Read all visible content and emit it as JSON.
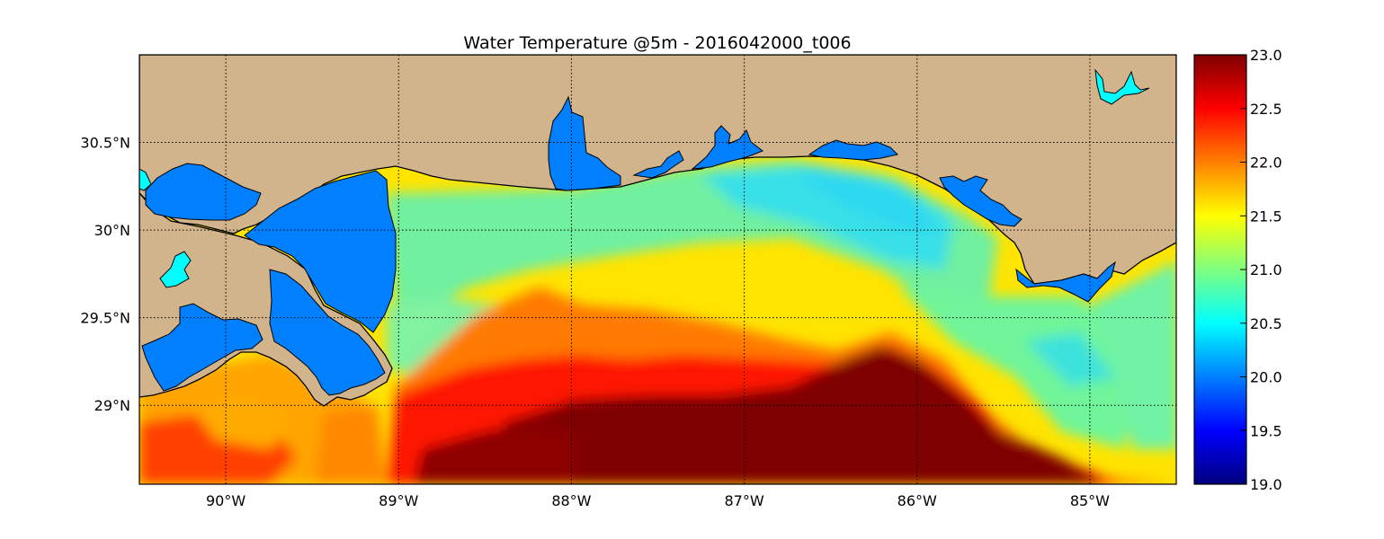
{
  "title": "Water Temperature @5m - 2016042000_t006",
  "map": {
    "lon_range": [
      -90.5,
      -84.5
    ],
    "lat_range": [
      28.55,
      31.0
    ],
    "lon_ticks": [
      {
        "value": -90,
        "label": "90°W"
      },
      {
        "value": -89,
        "label": "89°W"
      },
      {
        "value": -88,
        "label": "88°W"
      },
      {
        "value": -87,
        "label": "87°W"
      },
      {
        "value": -86,
        "label": "86°W"
      },
      {
        "value": -85,
        "label": "85°W"
      }
    ],
    "lat_ticks": [
      {
        "value": 30.5,
        "label": "30.5°N"
      },
      {
        "value": 30.0,
        "label": "30°N"
      },
      {
        "value": 29.5,
        "label": "29.5°N"
      },
      {
        "value": 29.0,
        "label": "29°N"
      }
    ],
    "grid": true,
    "grid_style": "dotted",
    "land_color": "#d2b48c",
    "lake_color": "#0080ff",
    "inland_water_color": "#00ffff"
  },
  "colorbar": {
    "min": 19.0,
    "max": 23.0,
    "colormap": "jet",
    "ticks": [
      "19.0",
      "19.5",
      "20.0",
      "20.5",
      "21.0",
      "21.5",
      "22.0",
      "22.5",
      "23.0"
    ]
  }
}
